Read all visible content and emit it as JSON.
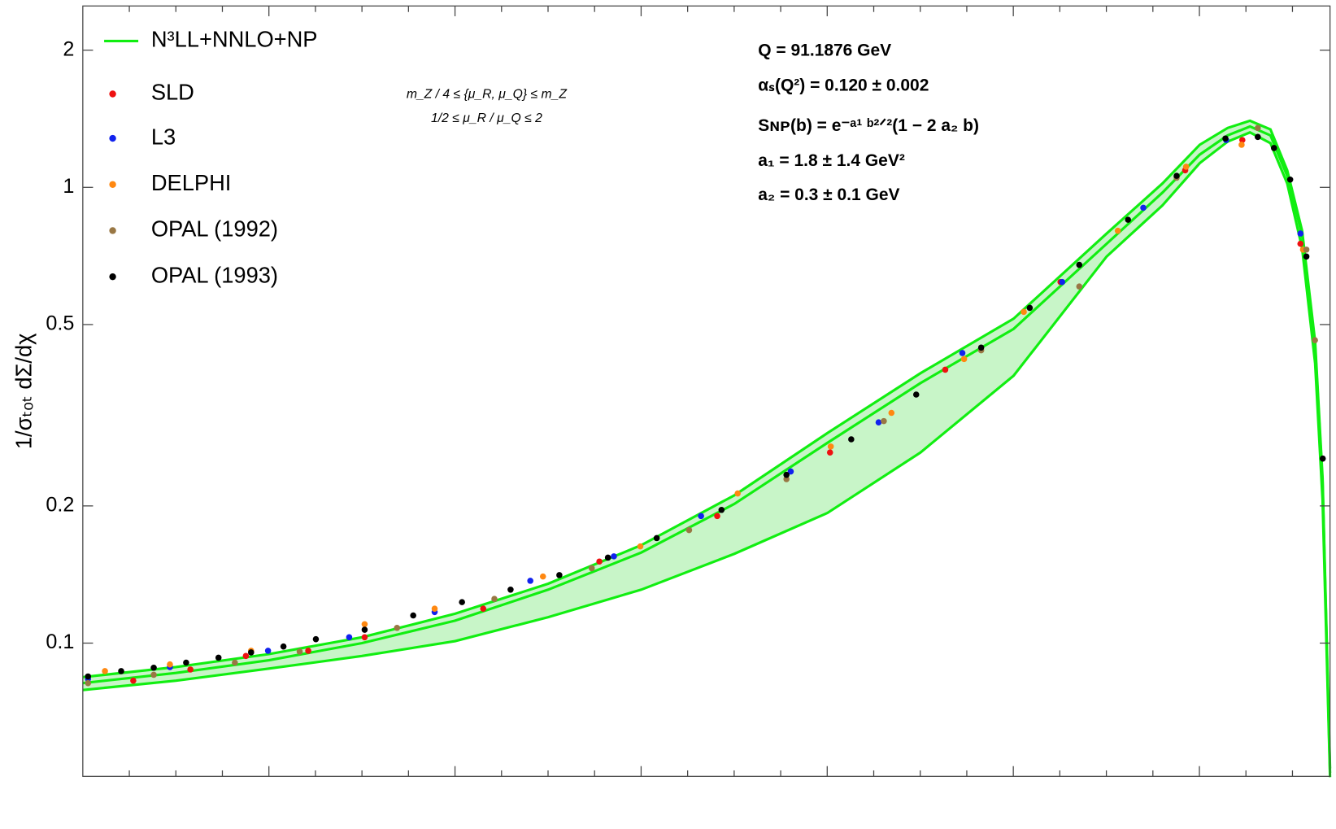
{
  "chart_data": {
    "type": "line",
    "ylabel": "1/σₜₒₜ  dΣ/dχ",
    "log_y": true,
    "ylim": [
      0.051,
      2.5
    ],
    "yticks": [
      0.1,
      0.2,
      0.5,
      1,
      2
    ],
    "xlim": [
      0,
      6.7
    ],
    "legend": "top-left",
    "annotations": [
      "Q =  91.1876 GeV",
      "αₛ(Q²) = 0.120 ± 0.002",
      "Sɴᴘ(b) = e⁻ᵃ¹ ᵇ²ᐟ²(1 − 2 a₂ b)",
      "a₁ = 1.8 ± 1.4 GeV²",
      "a₂ = 0.3 ± 0.1 GeV",
      "m_Z / 4 ≤ {μ_R, μ_Q} ≤ m_Z",
      "1/2 ≤ μ_R / μ_Q ≤ 2"
    ],
    "series": [
      {
        "name": "N³LL+NNLO+NP",
        "type": "line",
        "color": "#11ee11",
        "band_color": "#c8f5c8",
        "x": [
          0,
          0.5,
          1,
          1.5,
          2,
          2.5,
          3,
          3.5,
          4,
          4.5,
          5,
          5.5,
          5.8,
          6.0,
          6.15,
          6.27,
          6.38,
          6.47,
          6.55,
          6.62,
          6.66,
          6.7
        ],
        "values": [
          0.0817,
          0.086,
          0.0917,
          0.1,
          0.112,
          0.131,
          0.158,
          0.202,
          0.275,
          0.372,
          0.489,
          0.752,
          0.974,
          1.18,
          1.3,
          1.36,
          1.3,
          1.06,
          0.785,
          0.448,
          0.225,
          0.0519
        ],
        "upper": [
          0.0842,
          0.0886,
          0.0946,
          0.103,
          0.116,
          0.135,
          0.164,
          0.211,
          0.289,
          0.391,
          0.515,
          0.792,
          1.02,
          1.24,
          1.35,
          1.4,
          1.34,
          1.09,
          0.803,
          0.458,
          0.23,
          0.0531
        ],
        "lower": [
          0.0789,
          0.0827,
          0.0879,
          0.0937,
          0.101,
          0.114,
          0.131,
          0.157,
          0.193,
          0.262,
          0.386,
          0.705,
          0.913,
          1.13,
          1.26,
          1.32,
          1.25,
          1.02,
          0.736,
          0.411,
          0.206,
          0.0508
        ]
      },
      {
        "name": "SLD",
        "type": "scatter",
        "color": "#ee1111",
        "x": [
          0.271,
          0.578,
          0.876,
          1.211,
          1.514,
          2.151,
          2.775,
          3.408,
          4.014,
          4.633,
          5.252,
          5.922,
          6.229,
          6.541
        ],
        "values": [
          0.0827,
          0.0875,
          0.0937,
          0.0962,
          0.103,
          0.119,
          0.151,
          0.19,
          0.262,
          0.398,
          0.62,
          1.09,
          1.27,
          0.752
        ]
      },
      {
        "name": "L3",
        "type": "scatter",
        "color": "#1122ee",
        "x": [
          0.028,
          0.468,
          0.995,
          1.431,
          1.89,
          2.404,
          2.853,
          3.321,
          3.803,
          4.275,
          4.725,
          5.261,
          5.697,
          6.142,
          6.541
        ],
        "values": [
          0.0834,
          0.0886,
          0.0962,
          0.103,
          0.117,
          0.137,
          0.155,
          0.19,
          0.238,
          0.305,
          0.433,
          0.62,
          0.902,
          1.27,
          0.792
        ]
      },
      {
        "name": "DELPHI",
        "type": "scatter",
        "color": "#ff8811",
        "x": [
          0.119,
          0.468,
          0.904,
          1.514,
          1.89,
          2.472,
          2.995,
          3.518,
          4.018,
          4.344,
          4.734,
          5.055,
          5.56,
          5.927,
          6.225,
          6.555
        ],
        "values": [
          0.0868,
          0.0898,
          0.0962,
          0.11,
          0.119,
          0.14,
          0.163,
          0.213,
          0.27,
          0.32,
          0.42,
          0.533,
          0.803,
          1.11,
          1.24,
          0.73
        ]
      },
      {
        "name": "OPAL (1992)",
        "type": "scatter",
        "color": "#997744",
        "x": [
          0.028,
          0.381,
          0.817,
          1.165,
          1.688,
          2.211,
          2.734,
          3.257,
          3.78,
          4.303,
          4.826,
          5.353,
          5.876,
          6.312,
          6.573,
          6.619
        ],
        "values": [
          0.0817,
          0.0852,
          0.0906,
          0.0958,
          0.108,
          0.125,
          0.146,
          0.177,
          0.229,
          0.307,
          0.439,
          0.606,
          1.05,
          1.35,
          0.73,
          0.462
        ]
      },
      {
        "name": "OPAL (1993)",
        "type": "scatter",
        "color": "#000000",
        "x": [
          0.028,
          0.206,
          0.381,
          0.555,
          0.729,
          0.904,
          1.078,
          1.252,
          1.514,
          1.775,
          2.037,
          2.298,
          2.56,
          2.821,
          3.083,
          3.431,
          3.78,
          4.128,
          4.477,
          4.826,
          5.087,
          5.353,
          5.615,
          5.876,
          6.138,
          6.312,
          6.399,
          6.486,
          6.573,
          6.661
        ],
        "values": [
          0.0845,
          0.0868,
          0.0883,
          0.0906,
          0.0929,
          0.0954,
          0.0983,
          0.102,
          0.107,
          0.115,
          0.123,
          0.131,
          0.141,
          0.154,
          0.17,
          0.196,
          0.234,
          0.28,
          0.351,
          0.445,
          0.544,
          0.676,
          0.849,
          1.06,
          1.28,
          1.29,
          1.22,
          1.04,
          0.705,
          0.254
        ]
      }
    ]
  }
}
